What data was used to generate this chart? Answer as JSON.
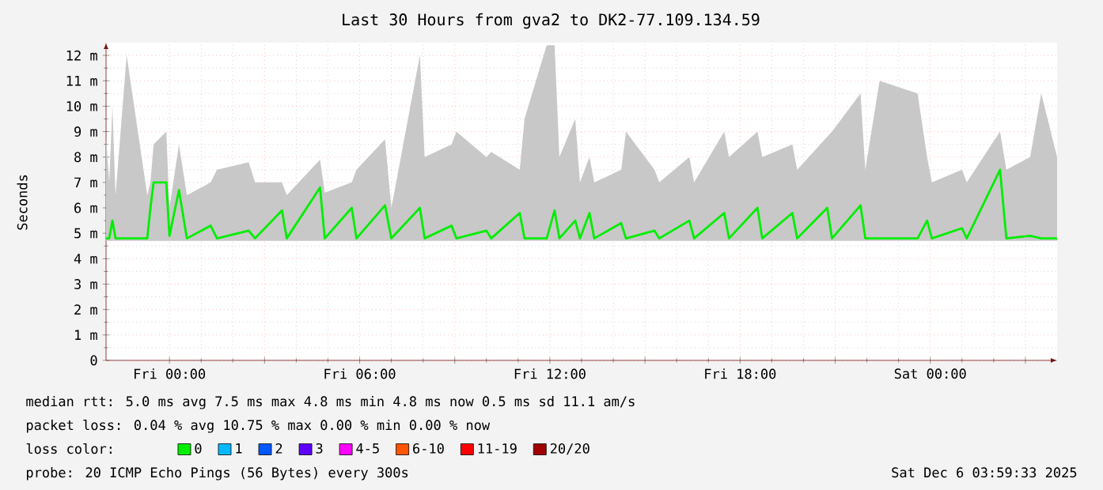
{
  "chart_data": {
    "type": "line",
    "title": "Last 30 Hours from gva2 to DK2-77.109.134.59",
    "ylabel": "Seconds",
    "legend_title": "loss color:",
    "legend": "bottom",
    "grid": true,
    "marker": "none",
    "line_style": "solid",
    "xlim": [
      "2025-12-04T22:00",
      "2025-12-06T04:00"
    ],
    "xticks": [
      {
        "value": "2025-12-05T00:00",
        "label": "Fri 00:00"
      },
      {
        "value": "2025-12-05T03:00",
        "label": null
      },
      {
        "value": "2025-12-05T06:00",
        "label": "Fri 06:00"
      },
      {
        "value": "2025-12-05T09:00",
        "label": null
      },
      {
        "value": "2025-12-05T12:00",
        "label": "Fri 12:00"
      },
      {
        "value": "2025-12-05T15:00",
        "label": null
      },
      {
        "value": "2025-12-05T18:00",
        "label": "Fri 18:00"
      },
      {
        "value": "2025-12-05T21:00",
        "label": null
      },
      {
        "value": "2025-12-06T00:00",
        "label": "Sat 00:00"
      },
      {
        "value": "2025-12-06T03:00",
        "label": null
      }
    ],
    "ylim": [
      0,
      12.5
    ],
    "yticks": [
      0,
      {
        "value": 1,
        "label": "1 m"
      },
      {
        "value": 2,
        "label": "2 m"
      },
      {
        "value": 3,
        "label": "3 m"
      },
      {
        "value": 4,
        "label": "4 m"
      },
      {
        "value": 5,
        "label": "5 m"
      },
      {
        "value": 6,
        "label": "6 m"
      },
      {
        "value": 7,
        "label": "7 m"
      },
      {
        "value": 8,
        "label": "8 m"
      },
      {
        "value": 9,
        "label": "9 m"
      },
      {
        "value": 10,
        "label": "10 m"
      },
      {
        "value": 11,
        "label": "11 m"
      },
      {
        "value": 12,
        "label": "12 m"
      }
    ],
    "x": [
      "2025-12-04T22:00",
      "2025-12-04T22:06",
      "2025-12-04T22:12",
      "2025-12-04T22:18",
      "2025-12-04T22:39",
      "2025-12-04T23:18",
      "2025-12-04T23:24",
      "2025-12-04T23:30",
      "2025-12-04T23:54",
      "2025-12-05T00:00",
      "2025-12-05T00:18",
      "2025-12-05T00:33",
      "2025-12-05T01:18",
      "2025-12-05T01:30",
      "2025-12-05T02:30",
      "2025-12-05T02:42",
      "2025-12-05T03:33",
      "2025-12-05T03:42",
      "2025-12-05T04:45",
      "2025-12-05T04:54",
      "2025-12-05T05:45",
      "2025-12-05T05:54",
      "2025-12-05T06:48",
      "2025-12-05T07:00",
      "2025-12-05T07:54",
      "2025-12-05T08:03",
      "2025-12-05T08:54",
      "2025-12-05T09:03",
      "2025-12-05T10:00",
      "2025-12-05T10:09",
      "2025-12-05T11:03",
      "2025-12-05T11:12",
      "2025-12-05T11:54",
      "2025-12-05T12:09",
      "2025-12-05T12:18",
      "2025-12-05T12:48",
      "2025-12-05T12:57",
      "2025-12-05T13:15",
      "2025-12-05T13:24",
      "2025-12-05T14:15",
      "2025-12-05T14:24",
      "2025-12-05T15:18",
      "2025-12-05T15:27",
      "2025-12-05T16:24",
      "2025-12-05T16:33",
      "2025-12-05T17:30",
      "2025-12-05T17:39",
      "2025-12-05T18:33",
      "2025-12-05T18:42",
      "2025-12-05T19:39",
      "2025-12-05T19:48",
      "2025-12-05T20:45",
      "2025-12-05T20:54",
      "2025-12-05T21:48",
      "2025-12-05T21:57",
      "2025-12-05T22:24",
      "2025-12-05T23:36",
      "2025-12-05T23:54",
      "2025-12-06T00:03",
      "2025-12-06T01:00",
      "2025-12-06T01:09",
      "2025-12-06T02:12",
      "2025-12-06T02:24",
      "2025-12-06T03:09",
      "2025-12-06T03:30",
      "2025-12-06T04:00"
    ],
    "series": [
      {
        "name": "0",
        "color": "#00ee00",
        "values": [
          4.8,
          4.8,
          5.5,
          4.8,
          4.8,
          4.8,
          6.0,
          7.0,
          7.0,
          4.9,
          6.7,
          4.8,
          5.3,
          4.8,
          5.1,
          4.8,
          5.9,
          4.8,
          6.8,
          4.8,
          6.0,
          4.8,
          6.1,
          4.8,
          6.0,
          4.8,
          5.3,
          4.8,
          5.1,
          4.8,
          5.8,
          4.8,
          4.8,
          5.9,
          4.8,
          5.5,
          4.8,
          5.8,
          4.8,
          5.4,
          4.8,
          5.1,
          4.8,
          5.5,
          4.8,
          5.8,
          4.8,
          6.0,
          4.8,
          5.8,
          4.8,
          6.0,
          4.8,
          6.1,
          4.8,
          4.8,
          4.8,
          5.5,
          4.8,
          5.2,
          4.8,
          7.5,
          4.8,
          4.9,
          4.8,
          4.8
        ],
        "lower": [
          4.7,
          4.7,
          4.7,
          4.7,
          4.7,
          4.7,
          4.7,
          4.7,
          4.7,
          4.7,
          4.7,
          4.7,
          4.7,
          4.7,
          4.7,
          4.7,
          4.7,
          4.7,
          4.7,
          4.7,
          4.7,
          4.7,
          4.7,
          4.7,
          4.7,
          4.7,
          4.7,
          4.7,
          4.7,
          4.7,
          4.7,
          4.7,
          4.7,
          4.7,
          4.7,
          4.7,
          4.7,
          4.7,
          4.7,
          4.7,
          4.7,
          4.7,
          4.7,
          4.7,
          4.7,
          4.7,
          4.7,
          4.7,
          4.7,
          4.7,
          4.7,
          4.7,
          4.7,
          4.7,
          4.7,
          4.7,
          4.7,
          4.7,
          4.7,
          4.7,
          4.7,
          4.7,
          4.7,
          4.7,
          4.7,
          4.7
        ],
        "upper": [
          8.8,
          7.0,
          10.0,
          6.5,
          12.0,
          6.5,
          7.0,
          8.5,
          9.0,
          6.0,
          8.5,
          6.5,
          7.0,
          7.5,
          7.8,
          7.0,
          7.0,
          6.5,
          7.9,
          6.6,
          7.0,
          7.5,
          8.7,
          6.0,
          12.0,
          8.0,
          8.5,
          9.0,
          8.0,
          8.2,
          7.5,
          9.5,
          12.4,
          12.4,
          8.0,
          9.5,
          7.0,
          8.0,
          7.0,
          7.5,
          9.0,
          7.5,
          7.0,
          8.0,
          7.0,
          9.0,
          8.0,
          9.0,
          8.0,
          8.5,
          7.5,
          8.8,
          9.0,
          10.5,
          7.5,
          11.0,
          10.5,
          8.0,
          7.0,
          7.5,
          7.0,
          9.0,
          7.5,
          8.0,
          10.5,
          8.0
        ]
      },
      {
        "name": "1",
        "color": "#00b8ff",
        "values": [
          null,
          null,
          null,
          null,
          null,
          null,
          null,
          null,
          null,
          null,
          null,
          null,
          null,
          null,
          null,
          null,
          null,
          null,
          null,
          null,
          null,
          null,
          null,
          null,
          null,
          null,
          null,
          null,
          null,
          null,
          null,
          null,
          null,
          null,
          null,
          null,
          null,
          null,
          null,
          null,
          null,
          null,
          null,
          null,
          null,
          null,
          null,
          null,
          null,
          null,
          null,
          null,
          null,
          null,
          null,
          null,
          null,
          null,
          null,
          null,
          null,
          null,
          null,
          null,
          null,
          null
        ]
      },
      {
        "name": "2",
        "color": "#0059ff",
        "values": [
          null,
          null,
          null,
          null,
          null,
          null,
          null,
          null,
          null,
          null,
          null,
          null,
          null,
          null,
          null,
          null,
          null,
          null,
          null,
          null,
          null,
          null,
          null,
          null,
          null,
          null,
          null,
          null,
          null,
          null,
          null,
          null,
          null,
          null,
          null,
          null,
          null,
          null,
          null,
          null,
          null,
          null,
          null,
          null,
          null,
          null,
          null,
          null,
          null,
          null,
          null,
          null,
          null,
          null,
          null,
          null,
          null,
          null,
          null,
          null,
          null,
          null,
          null,
          null,
          null,
          null
        ]
      },
      {
        "name": "3",
        "color": "#5e00ff",
        "values": [
          null,
          null,
          null,
          null,
          null,
          null,
          null,
          null,
          null,
          null,
          null,
          null,
          null,
          null,
          null,
          null,
          null,
          null,
          null,
          null,
          null,
          null,
          null,
          null,
          null,
          null,
          null,
          null,
          null,
          null,
          null,
          null,
          null,
          null,
          null,
          null,
          null,
          null,
          null,
          null,
          null,
          null,
          null,
          null,
          null,
          null,
          null,
          null,
          null,
          null,
          null,
          null,
          null,
          null,
          null,
          null,
          null,
          null,
          null,
          null,
          null,
          null,
          null,
          null,
          null,
          null
        ]
      },
      {
        "name": "4-5",
        "color": "#ff00ff",
        "values": [
          null,
          null,
          null,
          null,
          null,
          null,
          null,
          null,
          null,
          null,
          null,
          null,
          null,
          null,
          null,
          null,
          null,
          null,
          null,
          null,
          null,
          null,
          null,
          null,
          null,
          null,
          null,
          null,
          null,
          null,
          null,
          null,
          null,
          null,
          null,
          null,
          null,
          null,
          null,
          null,
          null,
          null,
          null,
          null,
          null,
          null,
          null,
          null,
          null,
          null,
          null,
          null,
          null,
          null,
          null,
          null,
          null,
          null,
          null,
          null,
          null,
          null,
          null,
          null,
          null,
          null
        ]
      },
      {
        "name": "6-10",
        "color": "#ff5500",
        "values": [
          null,
          null,
          null,
          null,
          null,
          null,
          null,
          null,
          null,
          null,
          null,
          null,
          null,
          null,
          null,
          null,
          null,
          null,
          null,
          null,
          null,
          null,
          null,
          null,
          null,
          null,
          null,
          null,
          null,
          null,
          null,
          null,
          null,
          null,
          null,
          null,
          null,
          null,
          null,
          null,
          null,
          null,
          null,
          null,
          null,
          null,
          null,
          null,
          null,
          null,
          null,
          null,
          null,
          null,
          null,
          null,
          null,
          null,
          null,
          null,
          null,
          null,
          null,
          null,
          null,
          null
        ]
      },
      {
        "name": "11-19",
        "color": "#ff0000",
        "values": [
          null,
          null,
          null,
          null,
          null,
          null,
          null,
          null,
          null,
          null,
          null,
          null,
          null,
          null,
          null,
          null,
          null,
          null,
          null,
          null,
          null,
          null,
          null,
          null,
          null,
          null,
          null,
          null,
          null,
          null,
          null,
          null,
          null,
          null,
          null,
          null,
          null,
          null,
          null,
          null,
          null,
          null,
          null,
          null,
          null,
          null,
          null,
          null,
          null,
          null,
          null,
          null,
          null,
          null,
          null,
          null,
          null,
          null,
          null,
          null,
          null,
          null,
          null,
          null,
          null,
          null
        ]
      },
      {
        "name": "20/20",
        "color": "#a10000",
        "values": [
          null,
          null,
          null,
          null,
          null,
          null,
          null,
          null,
          null,
          null,
          null,
          null,
          null,
          null,
          null,
          null,
          null,
          null,
          null,
          null,
          null,
          null,
          null,
          null,
          null,
          null,
          null,
          null,
          null,
          null,
          null,
          null,
          null,
          null,
          null,
          null,
          null,
          null,
          null,
          null,
          null,
          null,
          null,
          null,
          null,
          null,
          null,
          null,
          null,
          null,
          null,
          null,
          null,
          null,
          null,
          null,
          null,
          null,
          null,
          null,
          null,
          null,
          null,
          null,
          null,
          null
        ]
      }
    ],
    "annotations": [
      "median rtt: 5.0 ms avg 7.5 ms max 4.8 ms min 4.8 ms now 0.5 ms sd 11.1 am/s",
      "packet loss: 0.04 % avg 10.75 % max 0.00 % min 0.00 % now",
      "probe: 20 ICMP Echo Pings (56 Bytes) every 300s",
      "Sat Dec 6 03:59:33 2025"
    ]
  }
}
